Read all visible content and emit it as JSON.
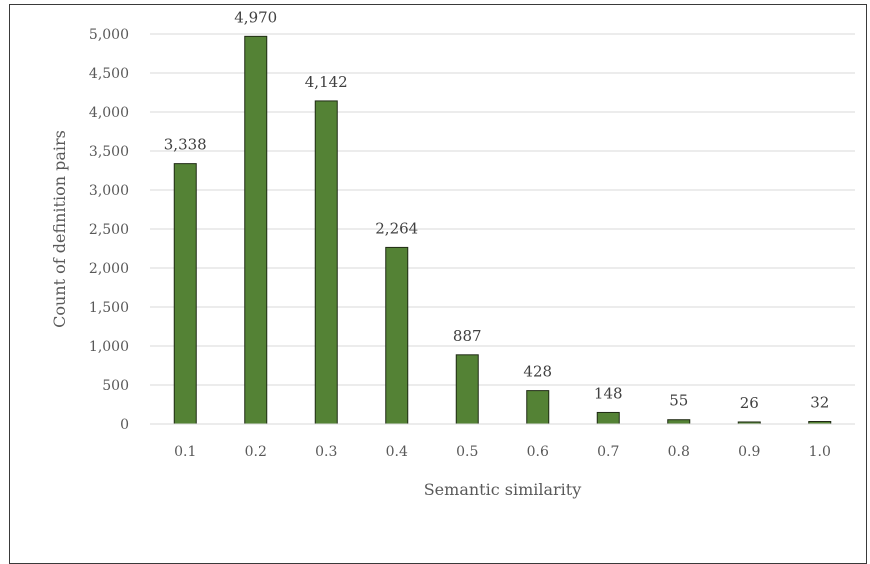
{
  "chart_data": {
    "type": "bar",
    "title": "",
    "xlabel": "Semantic similarity",
    "ylabel": "Count of definition pairs",
    "categories": [
      "0.1",
      "0.2",
      "0.3",
      "0.4",
      "0.5",
      "0.6",
      "0.7",
      "0.8",
      "0.9",
      "1.0"
    ],
    "values": [
      3338,
      4970,
      4142,
      2264,
      887,
      428,
      148,
      55,
      26,
      32
    ],
    "data_labels": [
      "3,338",
      "4,970",
      "4,142",
      "2,264",
      "887",
      "428",
      "148",
      "55",
      "26",
      "32"
    ],
    "ylim": [
      0,
      5000
    ],
    "yticks": [
      0,
      500,
      1000,
      1500,
      2000,
      2500,
      3000,
      3500,
      4000,
      4500,
      5000
    ],
    "ytick_labels": [
      "0",
      "500",
      "1,000",
      "1,500",
      "2,000",
      "2,500",
      "3,000",
      "3,500",
      "4,000",
      "4,500",
      "5,000"
    ],
    "grid": true,
    "legend": "none",
    "bar_color": "#548235",
    "bar_edge_color": "#1f2a14"
  }
}
